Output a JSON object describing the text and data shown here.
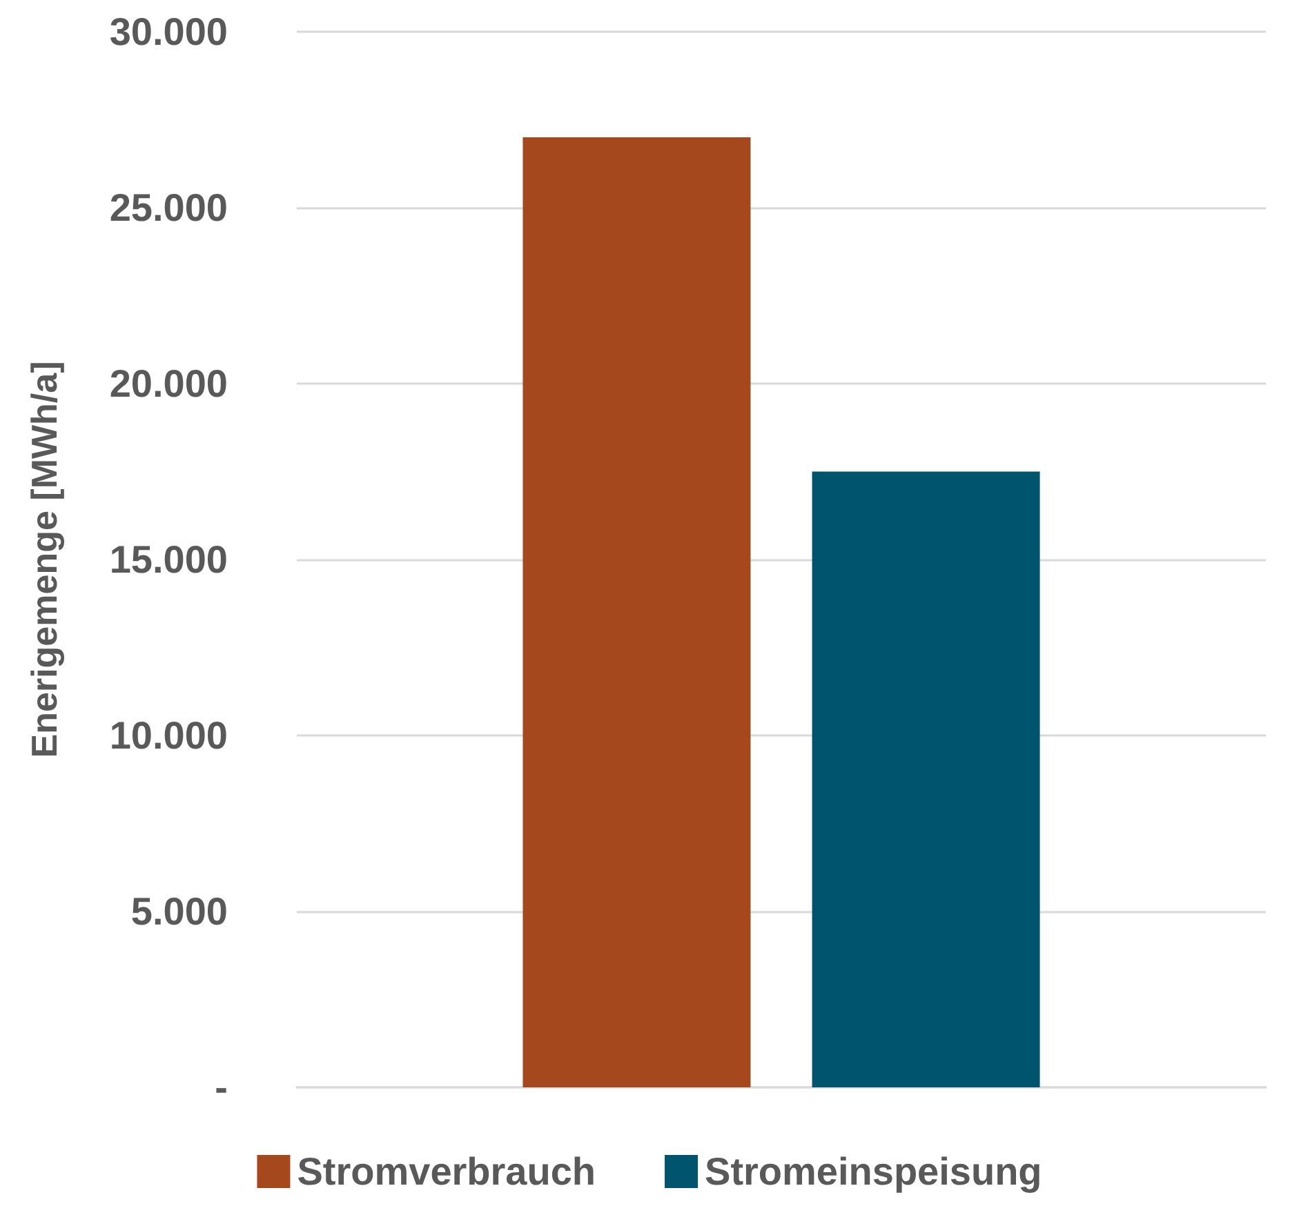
{
  "chart_data": {
    "type": "bar",
    "ylabel": "Enerigemenge [MWh/a]",
    "categories": [
      null
    ],
    "series": [
      {
        "name": "Stromverbrauch",
        "color": "#a5481e",
        "values": [
          27000
        ]
      },
      {
        "name": "Stromeinspeisung",
        "color": "#00546d",
        "values": [
          17500
        ]
      }
    ],
    "ylim": [
      0,
      30000
    ],
    "yticks": [
      {
        "value": 0,
        "label": "-"
      },
      {
        "value": 5000,
        "label": "5.000"
      },
      {
        "value": 10000,
        "label": "10.000"
      },
      {
        "value": 15000,
        "label": "15.000"
      },
      {
        "value": 20000,
        "label": "20.000"
      },
      {
        "value": 25000,
        "label": "25.000"
      },
      {
        "value": 30000,
        "label": "30.000"
      }
    ],
    "grid": "y",
    "legend": "bottom"
  }
}
